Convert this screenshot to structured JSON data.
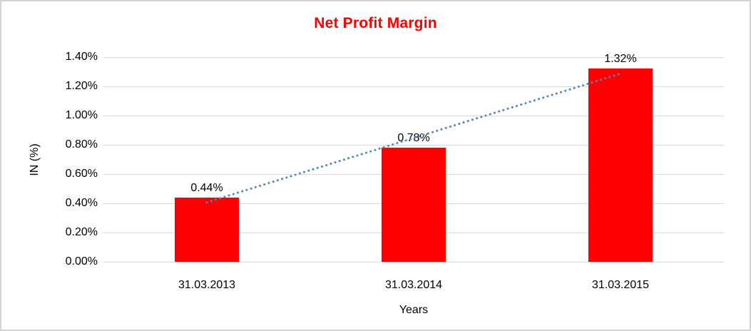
{
  "frame": {
    "background": "#FFFFFF",
    "border_color": "#D3D3D3"
  },
  "chart_data": {
    "type": "bar",
    "title": "Net Profit Margin",
    "title_color": "#FF0000",
    "xlabel": "Years",
    "ylabel": "IN (%)",
    "categories": [
      "31.03.2013",
      "31.03.2014",
      "31.03.2015"
    ],
    "values": [
      0.44,
      0.78,
      1.32
    ],
    "data_labels": [
      "0.44%",
      "0.78%",
      "1.32%"
    ],
    "bar_color": "#FF0000",
    "ylim": [
      0,
      1.4
    ],
    "yticks": [
      {
        "value": 0.0,
        "label": "0.00%"
      },
      {
        "value": 0.2,
        "label": "0.20%"
      },
      {
        "value": 0.4,
        "label": "0.40%"
      },
      {
        "value": 0.6,
        "label": "0.60%"
      },
      {
        "value": 0.8,
        "label": "0.80%"
      },
      {
        "value": 1.0,
        "label": "1.00%"
      },
      {
        "value": 1.2,
        "label": "1.20%"
      },
      {
        "value": 1.4,
        "label": "1.40%"
      }
    ],
    "grid": "horizontal",
    "gridline_color": "#D9D9D9",
    "legend": "none",
    "trendline": {
      "type": "linear",
      "style": "dotted",
      "color": "#4E86C8"
    }
  }
}
